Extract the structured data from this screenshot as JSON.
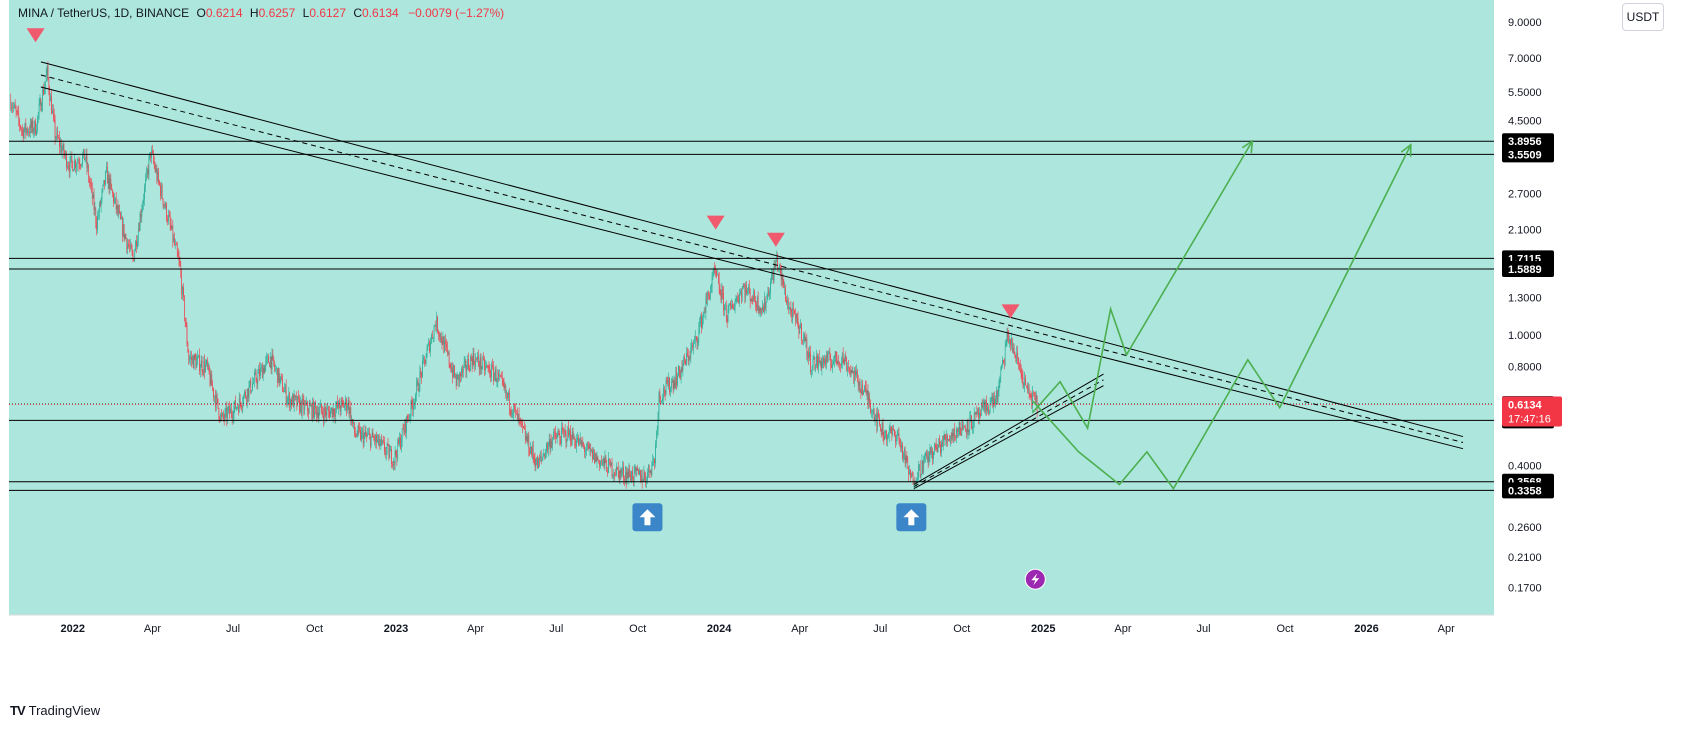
{
  "header": {
    "symbol": "MINA / TetherUS, 1D, BINANCE",
    "open_label": "O",
    "open": "0.6214",
    "high_label": "H",
    "high": "0.6257",
    "low_label": "L",
    "low": "0.6127",
    "close_label": "C",
    "close": "0.6134",
    "change": "−0.0079 (−1.27%)"
  },
  "unit_button": "USDT",
  "branding": {
    "name": "TradingView"
  },
  "colors": {
    "background": "#ade6dc",
    "up_candle": "#22ab94",
    "down_candle": "#f23645",
    "trendline": "#000000",
    "projection": "#4caf50",
    "marker_down": "#f05a6e",
    "marker_up": "#2962ff",
    "current_price": "#f23645"
  },
  "chart_data": {
    "type": "candlestick",
    "scale": "log",
    "ylim": [
      0.14,
      10.5
    ],
    "x_range": [
      "2021-10-21",
      "2026-05-25"
    ],
    "x_ticks": [
      {
        "label": "2022",
        "date": "2022-01-01",
        "bold": true
      },
      {
        "label": "Apr",
        "date": "2022-04-01"
      },
      {
        "label": "Jul",
        "date": "2022-07-01"
      },
      {
        "label": "Oct",
        "date": "2022-10-01"
      },
      {
        "label": "2023",
        "date": "2023-01-01",
        "bold": true
      },
      {
        "label": "Apr",
        "date": "2023-04-01"
      },
      {
        "label": "Jul",
        "date": "2023-07-01"
      },
      {
        "label": "Oct",
        "date": "2023-10-01"
      },
      {
        "label": "2024",
        "date": "2024-01-01",
        "bold": true
      },
      {
        "label": "Apr",
        "date": "2024-04-01"
      },
      {
        "label": "Jul",
        "date": "2024-07-01"
      },
      {
        "label": "Oct",
        "date": "2024-10-01"
      },
      {
        "label": "2025",
        "date": "2025-01-01",
        "bold": true
      },
      {
        "label": "Apr",
        "date": "2025-04-01"
      },
      {
        "label": "Jul",
        "date": "2025-07-01"
      },
      {
        "label": "Oct",
        "date": "2025-10-01"
      },
      {
        "label": "2026",
        "date": "2026-01-01",
        "bold": true
      },
      {
        "label": "Apr",
        "date": "2026-04-01"
      }
    ],
    "y_ticks": [
      "9.0000",
      "7.0000",
      "5.5000",
      "4.5000",
      "2.7000",
      "2.1000",
      "1.3000",
      "1.0000",
      "0.8000",
      "0.4000",
      "0.2600",
      "0.2100",
      "0.1700"
    ],
    "price_path": [
      [
        "2021-10-23",
        5.2
      ],
      [
        "2021-11-05",
        4.2
      ],
      [
        "2021-11-20",
        4.3
      ],
      [
        "2021-12-03",
        6.3
      ],
      [
        "2021-12-12",
        4.1
      ],
      [
        "2021-12-28",
        3.3
      ],
      [
        "2022-01-15",
        3.5
      ],
      [
        "2022-01-28",
        2.2
      ],
      [
        "2022-02-08",
        3.1
      ],
      [
        "2022-02-24",
        2.2
      ],
      [
        "2022-03-10",
        1.7
      ],
      [
        "2022-03-30",
        3.6
      ],
      [
        "2022-04-20",
        2.2
      ],
      [
        "2022-05-02",
        1.6
      ],
      [
        "2022-05-12",
        0.85
      ],
      [
        "2022-06-01",
        0.8
      ],
      [
        "2022-06-18",
        0.55
      ],
      [
        "2022-07-08",
        0.62
      ],
      [
        "2022-08-12",
        0.85
      ],
      [
        "2022-09-01",
        0.64
      ],
      [
        "2022-09-20",
        0.6
      ],
      [
        "2022-10-15",
        0.58
      ],
      [
        "2022-11-08",
        0.62
      ],
      [
        "2022-11-15",
        0.5
      ],
      [
        "2022-12-08",
        0.48
      ],
      [
        "2022-12-30",
        0.42
      ],
      [
        "2023-01-20",
        0.62
      ],
      [
        "2023-02-15",
        1.1
      ],
      [
        "2023-03-10",
        0.72
      ],
      [
        "2023-03-28",
        0.85
      ],
      [
        "2023-04-25",
        0.75
      ],
      [
        "2023-05-15",
        0.58
      ],
      [
        "2023-06-10",
        0.4
      ],
      [
        "2023-06-25",
        0.48
      ],
      [
        "2023-07-15",
        0.5
      ],
      [
        "2023-08-15",
        0.42
      ],
      [
        "2023-09-10",
        0.38
      ],
      [
        "2023-10-10",
        0.37
      ],
      [
        "2023-10-20",
        0.42
      ],
      [
        "2023-10-25",
        0.65
      ],
      [
        "2023-11-15",
        0.75
      ],
      [
        "2023-12-05",
        0.95
      ],
      [
        "2023-12-27",
        1.55
      ],
      [
        "2024-01-10",
        1.15
      ],
      [
        "2024-01-28",
        1.4
      ],
      [
        "2024-02-20",
        1.2
      ],
      [
        "2024-03-06",
        1.7
      ],
      [
        "2024-03-20",
        1.2
      ],
      [
        "2024-04-05",
        1.0
      ],
      [
        "2024-04-13",
        0.82
      ],
      [
        "2024-05-20",
        0.85
      ],
      [
        "2024-06-15",
        0.66
      ],
      [
        "2024-07-05",
        0.5
      ],
      [
        "2024-07-20",
        0.5
      ],
      [
        "2024-08-05",
        0.36
      ],
      [
        "2024-08-25",
        0.43
      ],
      [
        "2024-09-20",
        0.5
      ],
      [
        "2024-10-15",
        0.55
      ],
      [
        "2024-11-10",
        0.65
      ],
      [
        "2024-11-22",
        1.0
      ],
      [
        "2024-12-05",
        0.8
      ],
      [
        "2024-12-15",
        0.66
      ],
      [
        "2024-12-25",
        0.6134
      ]
    ],
    "trendline_down_top": [
      [
        "2021-11-26",
        6.8
      ],
      [
        "2026-04-20",
        0.49
      ]
    ],
    "trendline_down_mid": [
      [
        "2021-11-26",
        6.2
      ],
      [
        "2026-04-20",
        0.47
      ]
    ],
    "trendline_down_bot": [
      [
        "2021-11-26",
        5.7
      ],
      [
        "2026-04-20",
        0.45
      ]
    ],
    "trendline_up_top": [
      [
        "2024-08-08",
        0.35
      ],
      [
        "2025-03-10",
        0.76
      ]
    ],
    "trendline_up_mid": [
      [
        "2024-08-08",
        0.345
      ],
      [
        "2025-03-10",
        0.73
      ]
    ],
    "trendline_up_bot": [
      [
        "2024-08-08",
        0.34
      ],
      [
        "2025-03-10",
        0.7
      ]
    ],
    "levels": [
      "3.8956",
      "3.5509",
      "1.7115",
      "1.5889",
      "0.6151",
      "0.5488",
      "0.3568",
      "0.3358"
    ],
    "current_price": {
      "value": "0.6134",
      "countdown": "17:47:16"
    },
    "projection_1": [
      [
        "2024-12-20",
        0.58
      ],
      [
        "2025-01-20",
        0.72
      ],
      [
        "2025-02-20",
        0.52
      ],
      [
        "2025-03-18",
        1.2
      ],
      [
        "2025-04-05",
        0.87
      ],
      [
        "2025-08-25",
        3.9
      ]
    ],
    "projection_2": [
      [
        "2024-12-20",
        0.63
      ],
      [
        "2025-02-10",
        0.44
      ],
      [
        "2025-03-28",
        0.35
      ],
      [
        "2025-04-28",
        0.44
      ],
      [
        "2025-05-28",
        0.34
      ],
      [
        "2025-08-20",
        0.84
      ],
      [
        "2025-09-25",
        0.6
      ],
      [
        "2026-02-20",
        3.8
      ]
    ],
    "markers_down": [
      [
        "2021-11-20",
        8.2
      ],
      [
        "2023-12-28",
        2.2
      ],
      [
        "2024-03-05",
        1.95
      ],
      [
        "2024-11-25",
        1.18
      ]
    ],
    "markers_up": [
      [
        "2023-10-12",
        0.278
      ],
      [
        "2024-08-05",
        0.278
      ]
    ],
    "lightning_marker": [
      "2024-12-23",
      0.18
    ]
  }
}
